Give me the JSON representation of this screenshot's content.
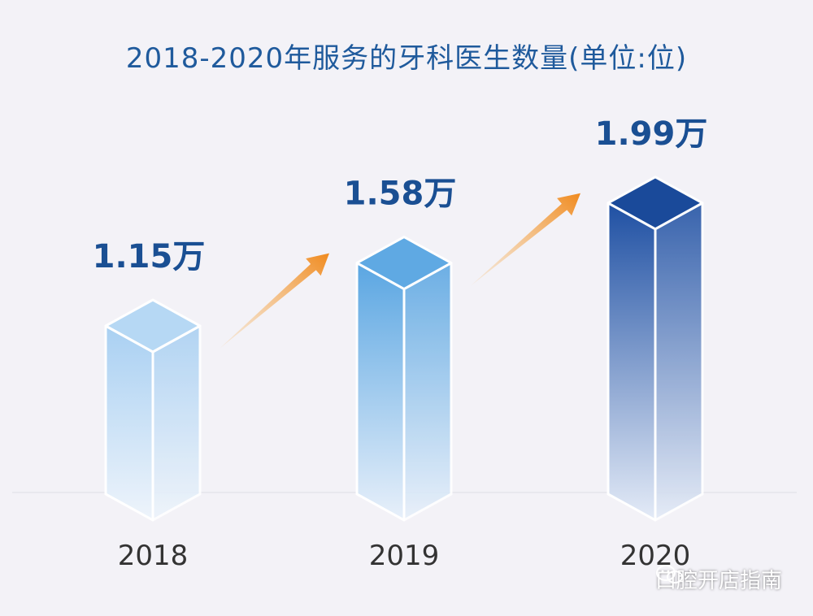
{
  "chart_data": {
    "type": "bar",
    "title": "2018-2020年服务的牙科医生数量(单位:位)",
    "categories": [
      "2018",
      "2019",
      "2020"
    ],
    "values": [
      11500,
      15800,
      19900
    ],
    "value_labels": [
      "1.15万",
      "1.58万",
      "1.99万"
    ],
    "unit": "位",
    "xlabel": "",
    "ylabel": "",
    "grid": false,
    "style": "3d-isometric-columns",
    "colors": {
      "title": "#1f5a9c",
      "value_label": "#1a4f93",
      "axis_label": "#333333",
      "arrow": "#f08a1e",
      "bar_light": [
        "#9cc8f0",
        "#4f9cdd",
        "#1e4fa0"
      ]
    }
  },
  "watermark": {
    "text": "口腔开店指南",
    "icon": "wechat-icon"
  }
}
